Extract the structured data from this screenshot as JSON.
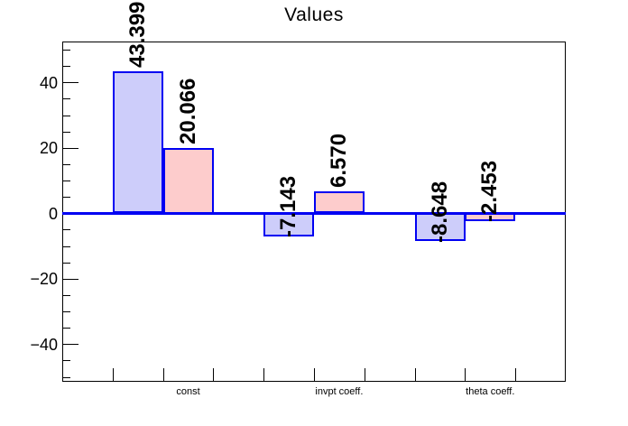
{
  "title": "Values",
  "colors": {
    "bar_outline": "#0000f2",
    "zero_line": "#0000f2",
    "blue_fill": "#cdcdfa",
    "pink_fill": "#fdcccc",
    "axis": "#000000",
    "text": "#000000"
  },
  "y_axis": {
    "tick_labels": [
      "40",
      "20",
      "0",
      "−20",
      "−40"
    ],
    "tick_values": [
      40,
      20,
      0,
      -20,
      -40
    ],
    "minor_step": 5
  },
  "x_axis": {
    "labels": [
      "const",
      "invpt coeff.",
      "theta coeff."
    ]
  },
  "chart_data": {
    "type": "bar",
    "title": "Values",
    "categories": [
      "const",
      "invpt coeff.",
      "theta coeff."
    ],
    "series": [
      {
        "name": "blue-series",
        "values": [
          43.399,
          -7.143,
          -8.648
        ],
        "value_labels": [
          "43.399",
          "-7.143",
          "-8.648"
        ]
      },
      {
        "name": "pink-series",
        "values": [
          20.066,
          6.57,
          -2.453
        ],
        "value_labels": [
          "20.066",
          "6.570",
          "-2.453"
        ]
      }
    ],
    "ylim": [
      -51.5,
      52.5
    ],
    "yticks": [
      40,
      20,
      0,
      -20,
      -40
    ],
    "yminor_tick_step": 5,
    "grid": false,
    "zero_line": true,
    "legend": "none",
    "value_labels_rotated_90deg": true
  }
}
